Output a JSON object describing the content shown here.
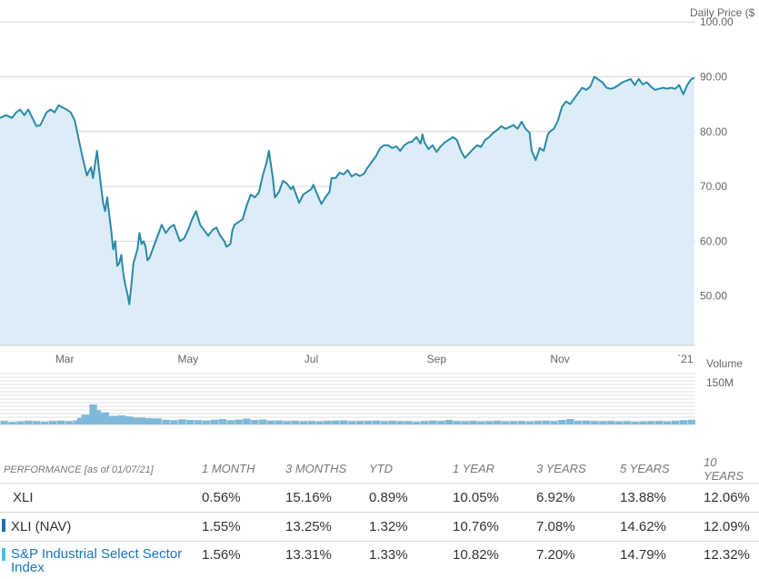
{
  "chart_data": {
    "type": "line",
    "y_axis_label": "Daily Price ($",
    "volume_label": "Volume",
    "volume_tick": "150M",
    "y_ticks": [
      "100.00",
      "90.00",
      "80.00",
      "70.00",
      "60.00",
      "50.00"
    ],
    "ylim": [
      41,
      104
    ],
    "x_ticks": [
      {
        "label": "Mar",
        "x": 32
      },
      {
        "label": "May",
        "x": 93
      },
      {
        "label": "Jul",
        "x": 154
      },
      {
        "label": "Sep",
        "x": 216
      },
      {
        "label": "Nov",
        "x": 277
      },
      {
        "label": "`21",
        "x": 339
      }
    ],
    "xlim": [
      0,
      344
    ],
    "series": [
      {
        "values": [
          [
            0,
            82.5
          ],
          [
            3,
            83
          ],
          [
            6,
            82.5
          ],
          [
            8,
            83.5
          ],
          [
            10,
            84
          ],
          [
            12,
            83
          ],
          [
            14,
            84
          ],
          [
            16,
            82.5
          ],
          [
            18,
            81
          ],
          [
            20,
            81.2
          ],
          [
            23,
            83.5
          ],
          [
            25,
            84
          ],
          [
            27,
            83.5
          ],
          [
            29,
            84.8
          ],
          [
            31,
            84.4
          ],
          [
            33,
            84
          ],
          [
            35,
            83.5
          ],
          [
            37,
            82
          ],
          [
            39,
            78.5
          ],
          [
            41,
            75
          ],
          [
            43,
            72
          ],
          [
            45,
            73.5
          ],
          [
            46,
            71.5
          ],
          [
            48,
            76.5
          ],
          [
            49,
            73
          ],
          [
            50,
            70
          ],
          [
            51,
            67
          ],
          [
            52,
            65.5
          ],
          [
            53,
            68
          ],
          [
            55,
            62
          ],
          [
            56,
            58.5
          ],
          [
            57,
            60
          ],
          [
            58,
            55.5
          ],
          [
            59,
            56
          ],
          [
            60,
            57.5
          ],
          [
            61,
            54
          ],
          [
            62,
            52
          ],
          [
            63,
            50.5
          ],
          [
            64,
            48.5
          ],
          [
            65,
            52
          ],
          [
            66,
            56
          ],
          [
            68,
            58.5
          ],
          [
            69,
            61.5
          ],
          [
            70,
            59.5
          ],
          [
            71,
            60
          ],
          [
            72,
            59
          ],
          [
            73,
            56.5
          ],
          [
            74,
            57
          ],
          [
            76,
            59
          ],
          [
            78,
            61
          ],
          [
            80,
            63
          ],
          [
            82,
            61.5
          ],
          [
            84,
            62.5
          ],
          [
            86,
            63
          ],
          [
            88,
            61
          ],
          [
            89,
            60
          ],
          [
            91,
            60.5
          ],
          [
            93,
            62
          ],
          [
            95,
            64
          ],
          [
            97,
            65.5
          ],
          [
            99,
            63
          ],
          [
            101,
            62
          ],
          [
            103,
            61
          ],
          [
            105,
            62
          ],
          [
            107,
            62.5
          ],
          [
            109,
            61
          ],
          [
            111,
            60
          ],
          [
            112,
            59
          ],
          [
            114,
            59.5
          ],
          [
            115,
            62
          ],
          [
            116,
            63
          ],
          [
            118,
            63.5
          ],
          [
            120,
            64
          ],
          [
            122,
            66.5
          ],
          [
            124,
            68.5
          ],
          [
            126,
            68
          ],
          [
            128,
            68.8
          ],
          [
            130,
            72
          ],
          [
            132,
            74.5
          ],
          [
            133,
            76.5
          ],
          [
            134,
            74
          ],
          [
            135,
            71.5
          ],
          [
            136,
            68
          ],
          [
            138,
            69
          ],
          [
            140,
            71
          ],
          [
            142,
            70.5
          ],
          [
            144,
            69.5
          ],
          [
            145,
            70
          ],
          [
            147,
            68
          ],
          [
            148,
            67
          ],
          [
            150,
            68.5
          ],
          [
            152,
            69
          ],
          [
            154,
            69.5
          ],
          [
            155,
            70.3
          ],
          [
            157,
            68.5
          ],
          [
            159,
            66.8
          ],
          [
            161,
            68
          ],
          [
            163,
            69
          ],
          [
            164,
            71.5
          ],
          [
            166,
            71.5
          ],
          [
            168,
            72.5
          ],
          [
            170,
            72.2
          ],
          [
            172,
            73
          ],
          [
            174,
            71.8
          ],
          [
            176,
            72.3
          ],
          [
            178,
            71.9
          ],
          [
            180,
            72.3
          ],
          [
            182,
            73.5
          ],
          [
            184,
            74.5
          ],
          [
            186,
            75.5
          ],
          [
            188,
            77
          ],
          [
            190,
            77.5
          ],
          [
            192,
            77.5
          ],
          [
            194,
            77
          ],
          [
            196,
            77.3
          ],
          [
            198,
            76.5
          ],
          [
            200,
            77.5
          ],
          [
            202,
            78
          ],
          [
            204,
            78.2
          ],
          [
            206,
            79
          ],
          [
            208,
            77.8
          ],
          [
            209,
            79.5
          ],
          [
            210,
            78
          ],
          [
            212,
            76.8
          ],
          [
            214,
            77.5
          ],
          [
            216,
            76.3
          ],
          [
            218,
            77.3
          ],
          [
            220,
            78
          ],
          [
            222,
            78.5
          ],
          [
            224,
            79
          ],
          [
            226,
            78.5
          ],
          [
            228,
            76.5
          ],
          [
            230,
            75.2
          ],
          [
            232,
            76
          ],
          [
            234,
            76.8
          ],
          [
            236,
            77.5
          ],
          [
            238,
            77.2
          ],
          [
            240,
            78.5
          ],
          [
            242,
            79
          ],
          [
            244,
            79.8
          ],
          [
            246,
            80.3
          ],
          [
            248,
            81
          ],
          [
            250,
            80.5
          ],
          [
            252,
            80.8
          ],
          [
            254,
            81.2
          ],
          [
            256,
            80.5
          ],
          [
            258,
            81.8
          ],
          [
            260,
            80.5
          ],
          [
            262,
            79.8
          ],
          [
            263,
            76.5
          ],
          [
            265,
            74.8
          ],
          [
            267,
            77
          ],
          [
            269,
            76.5
          ],
          [
            271,
            79.5
          ],
          [
            272,
            80
          ],
          [
            274,
            80.5
          ],
          [
            276,
            82
          ],
          [
            278,
            84.5
          ],
          [
            280,
            85.5
          ],
          [
            282,
            85
          ],
          [
            284,
            86
          ],
          [
            286,
            87
          ],
          [
            288,
            88
          ],
          [
            290,
            87.6
          ],
          [
            292,
            88.2
          ],
          [
            294,
            90
          ],
          [
            296,
            89.5
          ],
          [
            298,
            89
          ],
          [
            300,
            88
          ],
          [
            302,
            87.8
          ],
          [
            304,
            88
          ],
          [
            306,
            88.5
          ],
          [
            308,
            89
          ],
          [
            310,
            89.3
          ],
          [
            312,
            89.6
          ],
          [
            314,
            88.5
          ],
          [
            316,
            89.6
          ],
          [
            318,
            88.6
          ],
          [
            320,
            89
          ],
          [
            322,
            88.2
          ],
          [
            324,
            87.6
          ],
          [
            326,
            87.8
          ],
          [
            328,
            88
          ],
          [
            330,
            87.8
          ],
          [
            332,
            88
          ],
          [
            334,
            87.8
          ],
          [
            336,
            88.5
          ],
          [
            338,
            86.8
          ],
          [
            340,
            88.5
          ],
          [
            342,
            89.6
          ],
          [
            343.5,
            89.8
          ]
        ]
      }
    ],
    "volume": [
      [
        2,
        3.2
      ],
      [
        6,
        2.4
      ],
      [
        10,
        2.8
      ],
      [
        14,
        3.4
      ],
      [
        18,
        3
      ],
      [
        22,
        2.6
      ],
      [
        26,
        3.2
      ],
      [
        30,
        3.6
      ],
      [
        34,
        3
      ],
      [
        38,
        3.8
      ],
      [
        40,
        6
      ],
      [
        42,
        9
      ],
      [
        44,
        8.8
      ],
      [
        46,
        18.5
      ],
      [
        48,
        13
      ],
      [
        50,
        10
      ],
      [
        52,
        11.2
      ],
      [
        54,
        7.2
      ],
      [
        56,
        8
      ],
      [
        58,
        7.6
      ],
      [
        60,
        8.4
      ],
      [
        62,
        7.6
      ],
      [
        64,
        7.3
      ],
      [
        66,
        6.4
      ],
      [
        68,
        5.8
      ],
      [
        70,
        6.4
      ],
      [
        72,
        5.4
      ],
      [
        74,
        5.8
      ],
      [
        76,
        4.8
      ],
      [
        78,
        5.6
      ],
      [
        82,
        4.4
      ],
      [
        86,
        4
      ],
      [
        90,
        4.8
      ],
      [
        94,
        4.2
      ],
      [
        98,
        4
      ],
      [
        102,
        3.6
      ],
      [
        106,
        4.4
      ],
      [
        110,
        5
      ],
      [
        114,
        4
      ],
      [
        118,
        4.6
      ],
      [
        122,
        5.4
      ],
      [
        126,
        4.2
      ],
      [
        130,
        4.6
      ],
      [
        134,
        3.6
      ],
      [
        138,
        3.8
      ],
      [
        142,
        3
      ],
      [
        146,
        3.4
      ],
      [
        150,
        3
      ],
      [
        154,
        3.2
      ],
      [
        158,
        2.8
      ],
      [
        162,
        3.4
      ],
      [
        166,
        3.6
      ],
      [
        170,
        3.8
      ],
      [
        174,
        3
      ],
      [
        178,
        3.2
      ],
      [
        182,
        3.4
      ],
      [
        186,
        3.6
      ],
      [
        190,
        3
      ],
      [
        194,
        3.4
      ],
      [
        198,
        3
      ],
      [
        202,
        3
      ],
      [
        206,
        2.6
      ],
      [
        210,
        3.2
      ],
      [
        214,
        3.6
      ],
      [
        218,
        3.2
      ],
      [
        222,
        4.2
      ],
      [
        226,
        3.2
      ],
      [
        230,
        3
      ],
      [
        234,
        3.4
      ],
      [
        238,
        2.8
      ],
      [
        242,
        3
      ],
      [
        246,
        3.4
      ],
      [
        250,
        2.8
      ],
      [
        254,
        3
      ],
      [
        258,
        3.2
      ],
      [
        262,
        2.8
      ],
      [
        266,
        3.2
      ],
      [
        270,
        3.6
      ],
      [
        274,
        3
      ],
      [
        278,
        4.2
      ],
      [
        282,
        5
      ],
      [
        286,
        3.4
      ],
      [
        290,
        3.6
      ],
      [
        294,
        3.2
      ],
      [
        298,
        3
      ],
      [
        302,
        3.2
      ],
      [
        306,
        2.8
      ],
      [
        310,
        3
      ],
      [
        314,
        2.6
      ],
      [
        318,
        2.8
      ],
      [
        322,
        3
      ],
      [
        326,
        3.2
      ],
      [
        330,
        2.8
      ],
      [
        334,
        3.4
      ],
      [
        338,
        4
      ],
      [
        342,
        4.4
      ]
    ]
  },
  "performance": {
    "header": {
      "label": "PERFORMANCE",
      "asof": "[as of 01/07/21]",
      "periods": [
        "1 MONTH",
        "3 MONTHS",
        "YTD",
        "1 YEAR",
        "3 YEARS",
        "5 YEARS",
        "10 YEARS"
      ]
    },
    "rows": [
      {
        "name": "XLI",
        "marker": "",
        "values": [
          "0.56%",
          "15.16%",
          "0.89%",
          "10.05%",
          "6.92%",
          "13.88%",
          "12.06%"
        ]
      },
      {
        "name": "XLI (NAV)",
        "marker": "#1f6eb4",
        "values": [
          "1.55%",
          "13.25%",
          "1.32%",
          "10.76%",
          "7.08%",
          "14.62%",
          "12.09%"
        ]
      },
      {
        "name": "S&P Industrial Select Sector Index",
        "marker": "#3ec4e6",
        "values": [
          "1.56%",
          "13.31%",
          "1.33%",
          "10.82%",
          "7.20%",
          "14.79%",
          "12.32%"
        ]
      }
    ]
  },
  "colors": {
    "line": "#2a8aa8",
    "area": "#dcedf8",
    "volume": "#7fb9da"
  }
}
